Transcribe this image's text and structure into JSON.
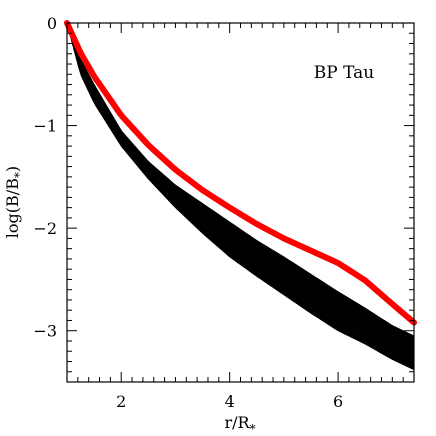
{
  "chart_data": {
    "type": "line",
    "annotation": "BP Tau",
    "xlabel": "r/R",
    "xlabel_sub": "*",
    "ylabel": "log(B/B",
    "ylabel_sub": "*",
    "ylabel_close": ")",
    "xlim": [
      1,
      7.4
    ],
    "ylim": [
      -3.5,
      0
    ],
    "x_ticks": [
      2,
      4,
      6
    ],
    "x_tick_labels": [
      "2",
      "4",
      "6"
    ],
    "y_ticks": [
      0,
      -1,
      -2,
      -3
    ],
    "y_tick_labels": [
      "0",
      "−1",
      "−2",
      "−3"
    ],
    "grid": false,
    "colors": {
      "black_band": "#000000",
      "red_curve": "#ff0000"
    },
    "series": [
      {
        "color": "#ff0000",
        "x": [
          1.0,
          1.25,
          1.5,
          2.0,
          2.5,
          3.0,
          3.5,
          4.0,
          4.5,
          5.0,
          5.5,
          6.0,
          6.5,
          7.0,
          7.4
        ],
        "y": [
          0.0,
          -0.29,
          -0.52,
          -0.9,
          -1.19,
          -1.43,
          -1.63,
          -1.8,
          -1.96,
          -2.1,
          -2.22,
          -2.34,
          -2.51,
          -2.74,
          -2.92
        ]
      },
      {
        "color": "#000000",
        "band": "upper",
        "x": [
          1.0,
          1.25,
          1.5,
          2.0,
          2.5,
          3.0,
          3.5,
          4.0,
          4.5,
          5.0,
          5.5,
          6.0,
          6.5,
          7.0,
          7.4
        ],
        "y": [
          0.0,
          -0.35,
          -0.6,
          -1.05,
          -1.35,
          -1.58,
          -1.76,
          -1.94,
          -2.12,
          -2.28,
          -2.45,
          -2.62,
          -2.78,
          -2.95,
          -3.05
        ]
      },
      {
        "color": "#000000",
        "band": "lower",
        "x": [
          1.0,
          1.25,
          1.5,
          2.0,
          2.5,
          3.0,
          3.5,
          4.0,
          4.5,
          5.0,
          5.5,
          6.0,
          6.5,
          7.0,
          7.4
        ],
        "y": [
          0.0,
          -0.5,
          -0.78,
          -1.2,
          -1.52,
          -1.8,
          -2.05,
          -2.28,
          -2.47,
          -2.65,
          -2.83,
          -3.0,
          -3.13,
          -3.28,
          -3.38
        ]
      }
    ]
  }
}
